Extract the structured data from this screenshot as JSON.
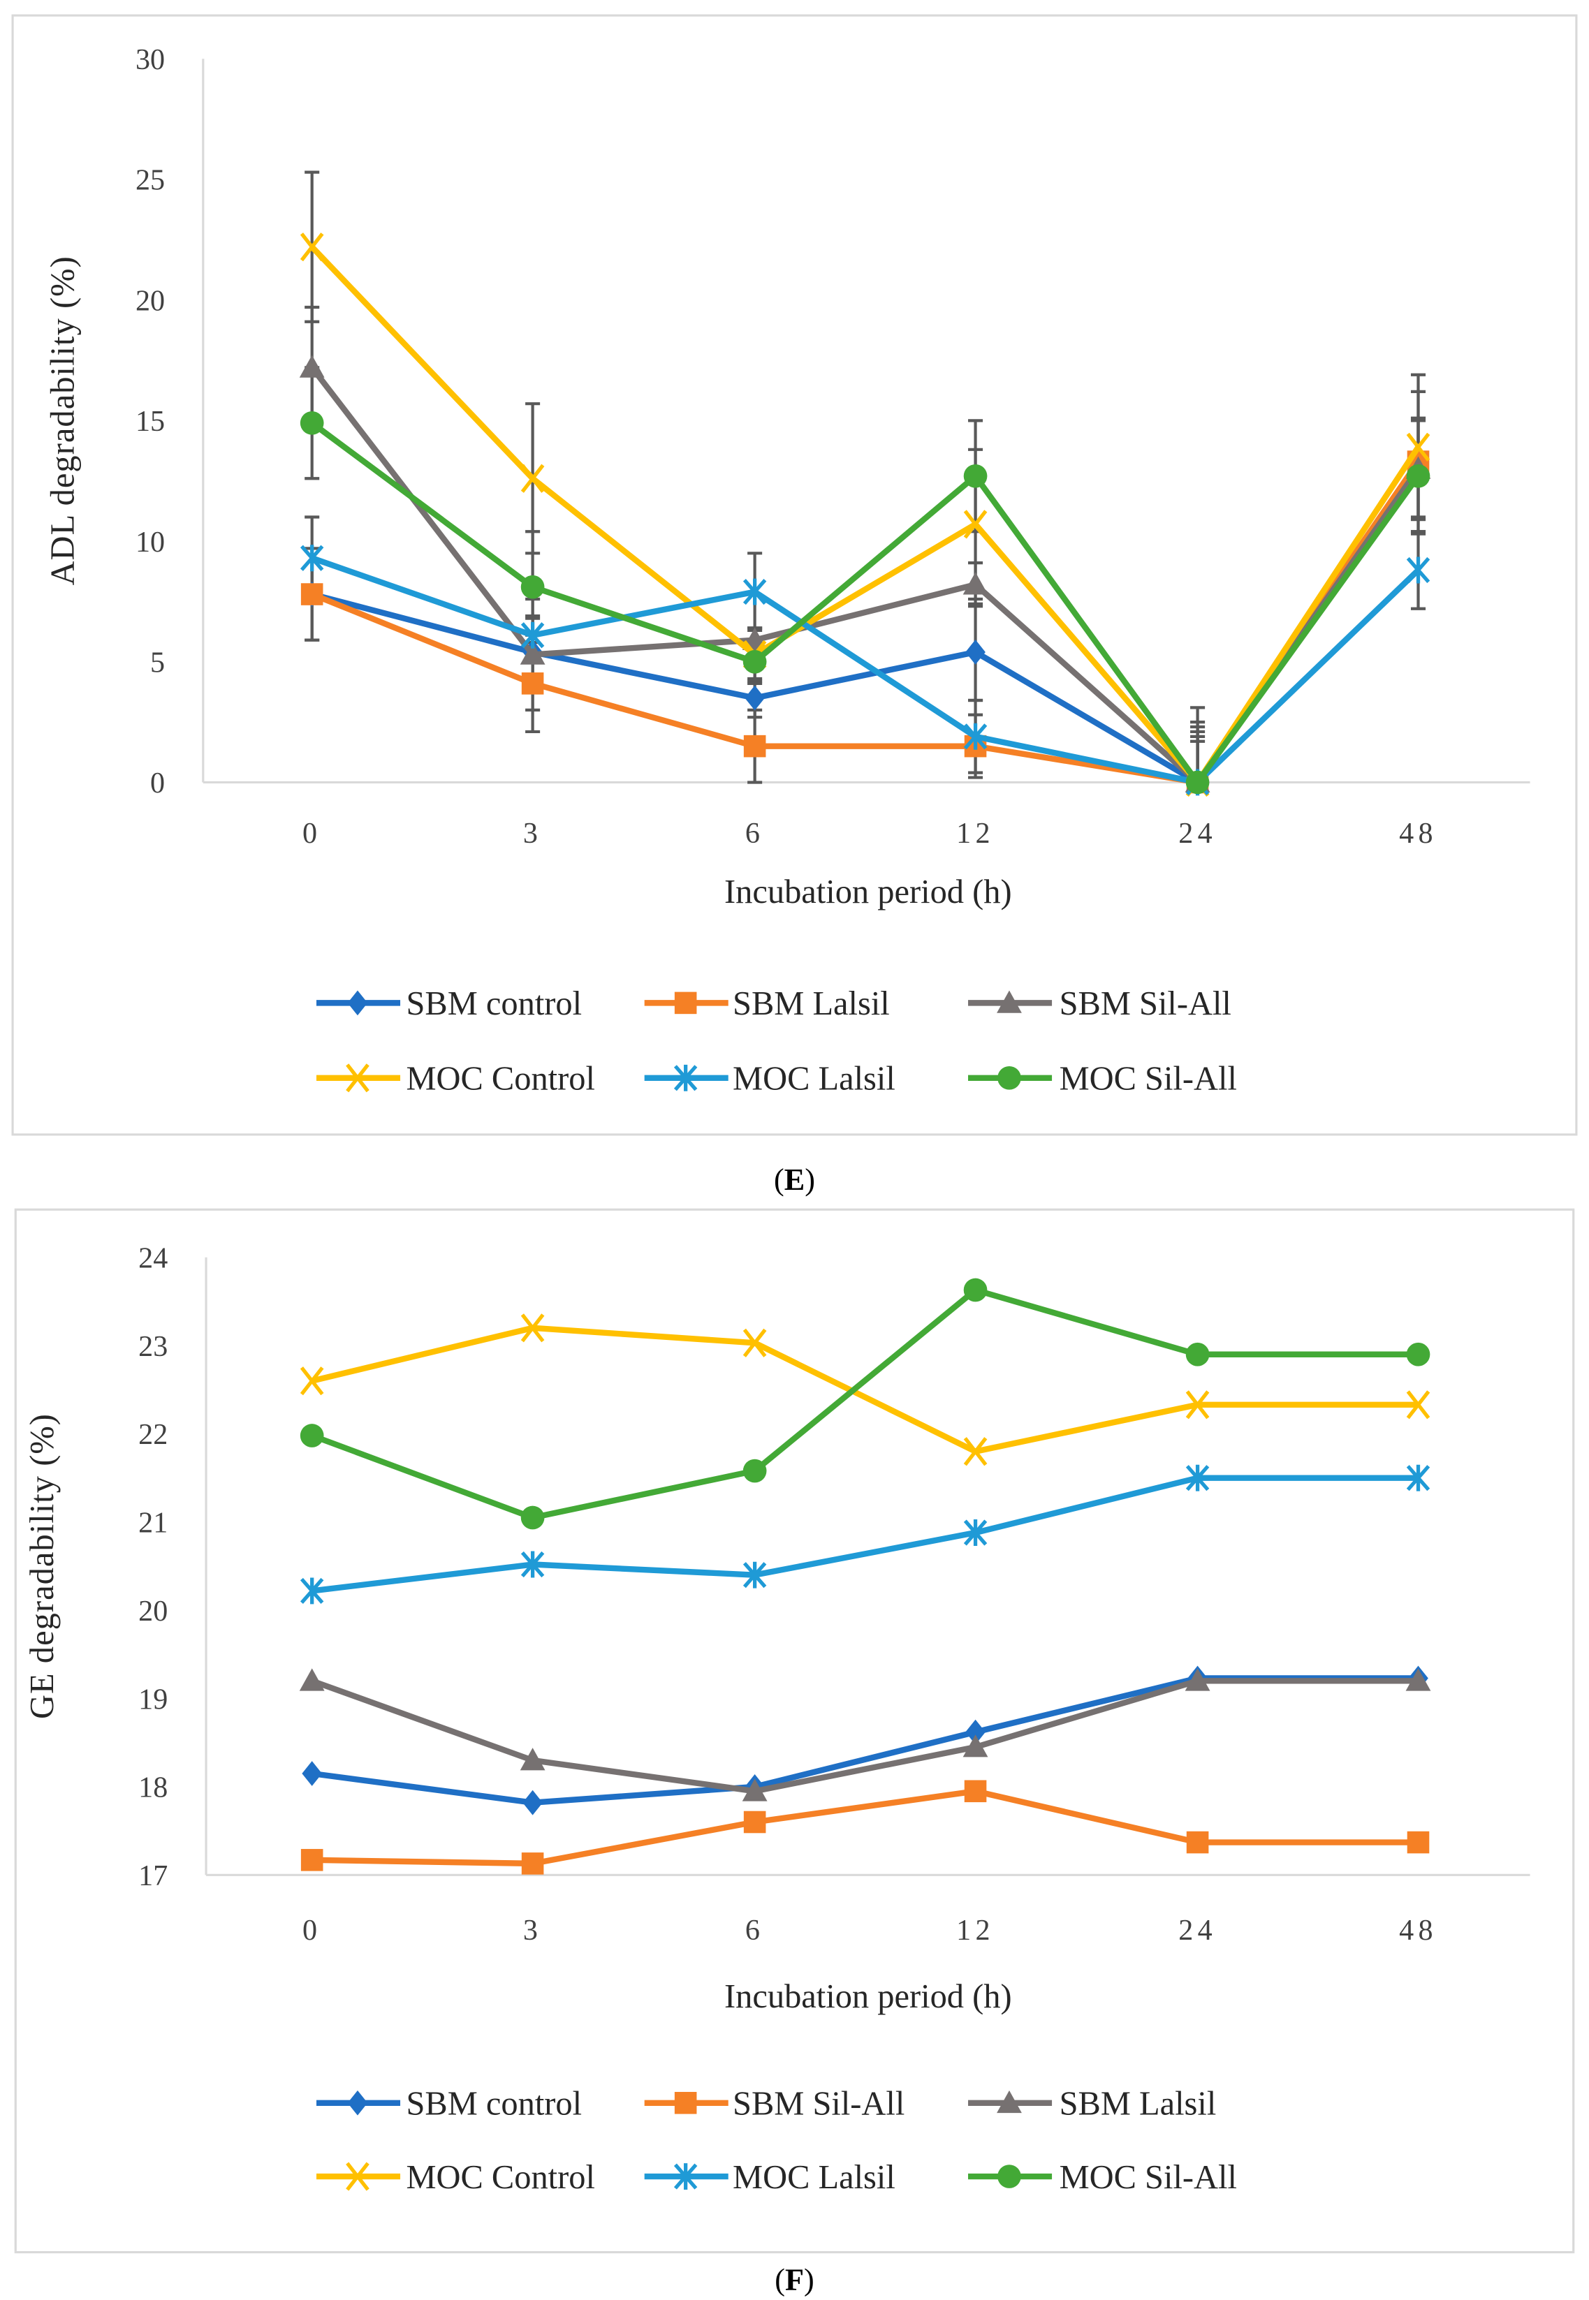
{
  "chart_data": [
    {
      "type": "line",
      "panel_label": "E",
      "xlabel": "Incubation period (h)",
      "ylabel": "ADL degradability (%)",
      "categories": [
        "0",
        "3",
        "6",
        "12",
        "24",
        "48"
      ],
      "ylim": [
        0,
        30
      ],
      "yticks": [
        0,
        5,
        10,
        15,
        20,
        25,
        30
      ],
      "grid": false,
      "legend_position": "bottom",
      "error_bar_color": "#595959",
      "series": [
        {
          "name": "SBM control",
          "color": "#1f6fc5",
          "marker": "diamond",
          "values": [
            7.8,
            5.4,
            3.5,
            5.4,
            0,
            13.0
          ],
          "error": [
            1.9,
            1.4,
            0.8,
            2.0,
            2.3,
            2.0
          ]
        },
        {
          "name": "SBM Lalsil",
          "color": "#f58025",
          "marker": "square",
          "values": [
            7.8,
            4.1,
            1.5,
            1.5,
            0,
            13.3
          ],
          "error": [
            1.9,
            2.0,
            1.5,
            1.3,
            2.5,
            2.9
          ]
        },
        {
          "name": "SBM Sil-All",
          "color": "#767171",
          "marker": "triangle",
          "values": [
            17.2,
            5.3,
            5.9,
            8.2,
            0,
            13.0
          ],
          "error": [
            2.5,
            2.3,
            0.5,
            0.9,
            2.1,
            2.1
          ]
        },
        {
          "name": "MOC Control",
          "color": "#ffc000",
          "marker": "x",
          "values": [
            22.2,
            12.6,
            5.3,
            10.7,
            0,
            13.9
          ],
          "error": [
            3.1,
            3.1,
            1.1,
            3.1,
            3.1,
            3.0
          ]
        },
        {
          "name": "MOC Lalsil",
          "color": "#1f9ad6",
          "marker": "asterisk",
          "values": [
            9.3,
            6.1,
            7.9,
            1.9,
            0,
            8.8
          ],
          "error": [
            1.7,
            0.8,
            1.6,
            1.5,
            1.9,
            1.6
          ]
        },
        {
          "name": "MOC Sil-All",
          "color": "#43a936",
          "marker": "circle",
          "values": [
            14.9,
            8.1,
            5.0,
            12.7,
            0,
            12.7
          ],
          "error": [
            2.3,
            2.3,
            0.9,
            2.3,
            1.7,
            2.4
          ]
        }
      ]
    },
    {
      "type": "line",
      "panel_label": "F",
      "xlabel": "Incubation period (h)",
      "ylabel": "GE degradability (%)",
      "categories": [
        "0",
        "3",
        "6",
        "12",
        "24",
        "48"
      ],
      "ylim": [
        17,
        24
      ],
      "yticks": [
        17,
        18,
        19,
        20,
        21,
        22,
        23,
        24
      ],
      "grid": false,
      "legend_position": "bottom",
      "series": [
        {
          "name": "SBM control",
          "color": "#1f6fc5",
          "marker": "diamond",
          "values": [
            18.15,
            17.82,
            18.0,
            18.62,
            19.23,
            19.23
          ]
        },
        {
          "name": "SBM Sil-All",
          "color": "#f58025",
          "marker": "square",
          "values": [
            17.17,
            17.13,
            17.6,
            17.95,
            17.37,
            17.37
          ]
        },
        {
          "name": "SBM Lalsil",
          "color": "#767171",
          "marker": "triangle",
          "values": [
            19.2,
            18.3,
            17.95,
            18.45,
            19.2,
            19.2
          ]
        },
        {
          "name": "MOC Control",
          "color": "#ffc000",
          "marker": "x",
          "values": [
            22.6,
            23.2,
            23.03,
            21.8,
            22.33,
            22.33
          ]
        },
        {
          "name": "MOC Lalsil",
          "color": "#1f9ad6",
          "marker": "asterisk",
          "values": [
            20.22,
            20.52,
            20.4,
            20.88,
            21.5,
            21.5
          ]
        },
        {
          "name": "MOC Sil-All",
          "color": "#43a936",
          "marker": "circle",
          "values": [
            21.98,
            21.05,
            21.58,
            23.63,
            22.9,
            22.9
          ]
        }
      ]
    }
  ]
}
